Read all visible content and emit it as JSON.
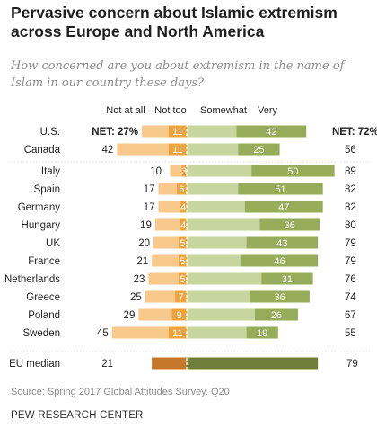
{
  "chart_data": {
    "type": "bar",
    "orientation": "horizontal-diverging",
    "title": "Pervasive concern about Islamic extremism across Europe and North America",
    "subtitle": "How concerned are you about extremism in the name of Islam in our country these days?",
    "legend": [
      "Not at all",
      "Not too",
      "Somewhat",
      "Very"
    ],
    "net_prefix": "NET:",
    "groups": [
      {
        "rows": [
          {
            "label": "U.S.",
            "not_at_all": 16,
            "not_too": 11,
            "somewhat": 30,
            "very": 42,
            "net_unconcerned": 27,
            "net_concerned": 72,
            "net_display": "percent"
          },
          {
            "label": "Canada",
            "not_at_all": 31,
            "not_too": 11,
            "somewhat": 31,
            "very": 25,
            "net_unconcerned": 42,
            "net_concerned": 56
          }
        ]
      },
      {
        "rows": [
          {
            "label": "Italy",
            "not_at_all": 7,
            "not_too": 3,
            "somewhat": 39,
            "very": 50,
            "net_unconcerned": 10,
            "net_concerned": 89
          },
          {
            "label": "Spain",
            "not_at_all": 11,
            "not_too": 6,
            "somewhat": 31,
            "very": 51,
            "net_unconcerned": 17,
            "net_concerned": 82
          },
          {
            "label": "Germany",
            "not_at_all": 13,
            "not_too": 4,
            "somewhat": 35,
            "very": 47,
            "net_unconcerned": 17,
            "net_concerned": 82
          },
          {
            "label": "Hungary",
            "not_at_all": 15,
            "not_too": 4,
            "somewhat": 44,
            "very": 36,
            "net_unconcerned": 19,
            "net_concerned": 80
          },
          {
            "label": "UK",
            "not_at_all": 15,
            "not_too": 5,
            "somewhat": 36,
            "very": 43,
            "net_unconcerned": 20,
            "net_concerned": 79
          },
          {
            "label": "France",
            "not_at_all": 16,
            "not_too": 5,
            "somewhat": 33,
            "very": 46,
            "net_unconcerned": 21,
            "net_concerned": 79
          },
          {
            "label": "Netherlands",
            "not_at_all": 18,
            "not_too": 5,
            "somewhat": 45,
            "very": 31,
            "net_unconcerned": 23,
            "net_concerned": 76
          },
          {
            "label": "Greece",
            "not_at_all": 18,
            "not_too": 7,
            "somewhat": 38,
            "very": 36,
            "net_unconcerned": 25,
            "net_concerned": 74
          },
          {
            "label": "Poland",
            "not_at_all": 20,
            "not_too": 9,
            "somewhat": 41,
            "very": 26,
            "net_unconcerned": 29,
            "net_concerned": 67
          },
          {
            "label": "Sweden",
            "not_at_all": 34,
            "not_too": 11,
            "somewhat": 36,
            "very": 19,
            "net_unconcerned": 45,
            "net_concerned": 55
          }
        ]
      },
      {
        "median": true,
        "rows": [
          {
            "label": "EU median",
            "net_unconcerned": 21,
            "net_concerned": 79
          }
        ]
      }
    ]
  },
  "colors": {
    "not_at_all": "#f9c98c",
    "not_too": "#efa33d",
    "somewhat": "#c6d69e",
    "very": "#96ac59",
    "median_unconcerned": "#c6782a",
    "median_concerned": "#6f7f3a",
    "divider": "#d9d9d9",
    "text": "#1f1f1f",
    "bar_label": "#ffffff"
  },
  "source_note": "Source: Spring 2017 Global Attitudes Survey. Q20",
  "brand": "PEW RESEARCH CENTER"
}
